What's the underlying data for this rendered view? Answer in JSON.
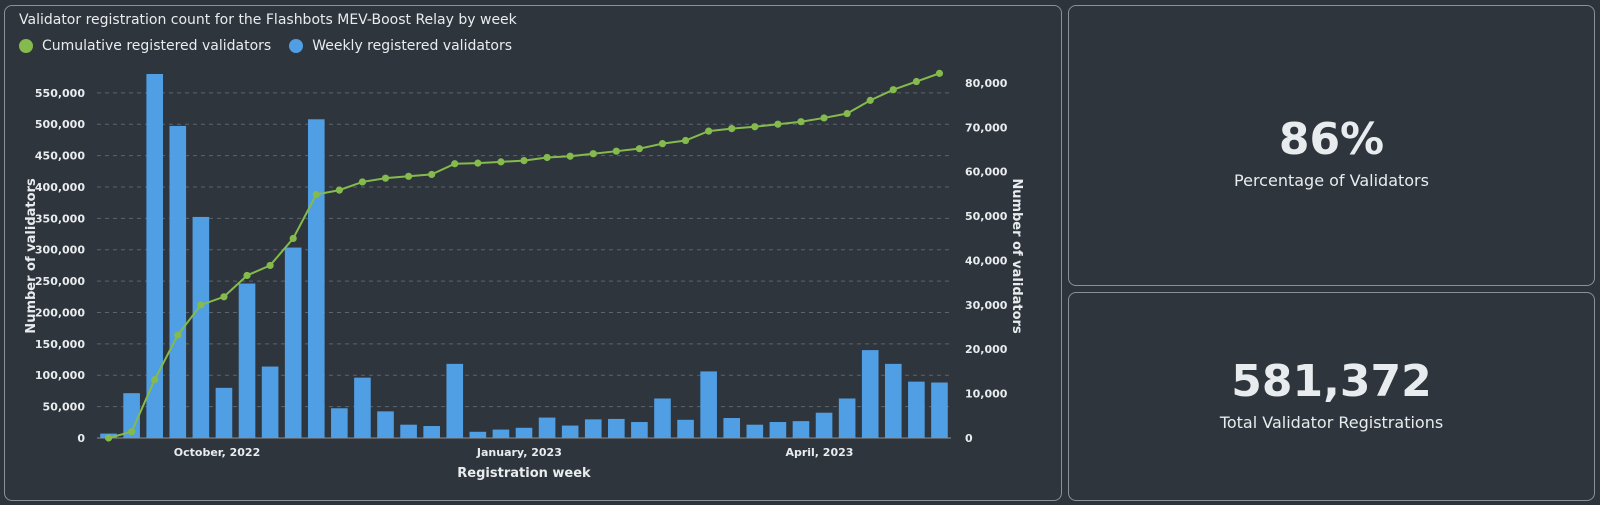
{
  "chart": {
    "title": "Validator registration count for the Flashbots MEV-Boost Relay by week"
  },
  "stats": [
    {
      "value": "86%",
      "label": "Percentage of Validators"
    },
    {
      "value": "581,372",
      "label": "Total Validator Registrations"
    }
  ],
  "colors": {
    "background": "#2e343b",
    "bar": "#509ee3",
    "line": "#84bb4c",
    "grid": "#5b636b",
    "text": "#e9ecef"
  },
  "chart_data": {
    "type": "bar",
    "title": "Validator registration count for the Flashbots MEV-Boost Relay by week",
    "xlabel": "Registration week",
    "ylabel": "Number of validators",
    "y2label": "Number of validators",
    "grid": true,
    "legend_position": "top-left",
    "x_tick_labels": [
      {
        "label": "October, 2022",
        "index": 4.7
      },
      {
        "label": "January, 2023",
        "index": 17.8
      },
      {
        "label": "April, 2023",
        "index": 30.8
      }
    ],
    "ylim": [
      0,
      580000
    ],
    "y_ticks": [
      0,
      50000,
      100000,
      150000,
      200000,
      250000,
      300000,
      350000,
      400000,
      450000,
      500000,
      550000
    ],
    "y_tick_labels": [
      "0",
      "50,000",
      "100,000",
      "150,000",
      "200,000",
      "250,000",
      "300,000",
      "350,000",
      "400,000",
      "450,000",
      "500,000",
      "550,000"
    ],
    "y2lim": [
      0,
      82000
    ],
    "y2_ticks": [
      0,
      10000,
      20000,
      30000,
      40000,
      50000,
      60000,
      70000,
      80000
    ],
    "y2_tick_labels": [
      "0",
      "10,000",
      "20,000",
      "30,000",
      "40,000",
      "50,000",
      "60,000",
      "70,000",
      "80,000"
    ],
    "series": [
      {
        "name": "Weekly registered validators",
        "type": "bar",
        "axis": "right",
        "values": [
          1000,
          10100,
          82000,
          70300,
          49800,
          11300,
          34800,
          16100,
          42900,
          71800,
          6700,
          13600,
          6000,
          3000,
          2700,
          16700,
          1400,
          1900,
          2300,
          4600,
          2800,
          4200,
          4300,
          3600,
          8900,
          4100,
          15000,
          4500,
          3000,
          3600,
          3800,
          5700,
          8900,
          19800,
          16700,
          12700,
          12500
        ]
      },
      {
        "name": "Cumulative registered validators",
        "type": "line",
        "axis": "left",
        "values": [
          0,
          10000,
          93000,
          164000,
          212000,
          225000,
          259000,
          275000,
          318000,
          388000,
          395000,
          408000,
          414000,
          417000,
          420000,
          437000,
          438000,
          440000,
          442000,
          447000,
          449000,
          453000,
          457000,
          461000,
          469000,
          474000,
          489000,
          493000,
          496000,
          500000,
          504000,
          510000,
          517000,
          538000,
          555000,
          568000,
          581000
        ]
      }
    ]
  }
}
